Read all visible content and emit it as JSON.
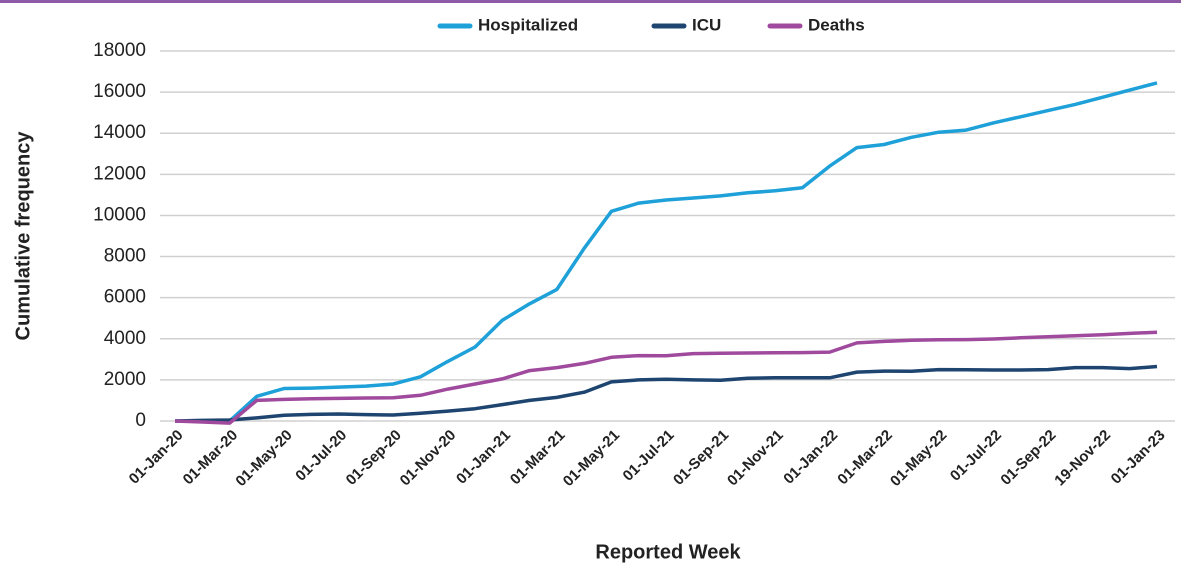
{
  "chart_data": {
    "type": "line",
    "x_label": "Reported Week",
    "y_label": "Cumulative frequency",
    "categories": [
      "01-Jan-20",
      null,
      "01-Mar-20",
      null,
      "01-May-20",
      null,
      "01-Jul-20",
      null,
      "01-Sep-20",
      null,
      "01-Nov-20",
      null,
      "01-Jan-21",
      null,
      "01-Mar-21",
      null,
      "01-May-21",
      null,
      "01-Jul-21",
      null,
      "01-Sep-21",
      null,
      "01-Nov-21",
      null,
      "01-Jan-22",
      null,
      "01-Mar-22",
      null,
      "01-May-22",
      null,
      "01-Jul-22",
      null,
      "01-Sep-22",
      null,
      "19-Nov-22",
      null,
      "01-Jan-23"
    ],
    "series": [
      {
        "name": "Hospitalized",
        "color": "#1ea0d8",
        "values": [
          0,
          0,
          0,
          1200,
          1580,
          1600,
          1650,
          1700,
          1800,
          2150,
          2900,
          3600,
          4900,
          5700,
          6400,
          8400,
          10200,
          10600,
          10750,
          10850,
          10950,
          11100,
          11200,
          11350,
          12400,
          13300,
          13450,
          13800,
          14050,
          14150,
          14500,
          14800,
          15100,
          15400,
          15750,
          16100,
          16450
        ]
      },
      {
        "name": "ICU",
        "color": "#1e4470",
        "values": [
          0,
          30,
          50,
          150,
          280,
          320,
          340,
          310,
          290,
          380,
          480,
          600,
          800,
          1000,
          1150,
          1400,
          1900,
          2000,
          2030,
          2000,
          1980,
          2080,
          2100,
          2100,
          2100,
          2380,
          2430,
          2420,
          2500,
          2490,
          2480,
          2480,
          2500,
          2600,
          2600,
          2550,
          2650
        ]
      },
      {
        "name": "Deaths",
        "color": "#a04a9e",
        "values": [
          0,
          -50,
          -100,
          1000,
          1050,
          1080,
          1100,
          1120,
          1130,
          1250,
          1550,
          1800,
          2050,
          2450,
          2600,
          2800,
          3100,
          3180,
          3170,
          3280,
          3300,
          3310,
          3320,
          3330,
          3350,
          3800,
          3870,
          3930,
          3950,
          3960,
          3990,
          4050,
          4100,
          4150,
          4200,
          4260,
          4320
        ]
      }
    ],
    "ylim": [
      0,
      18000
    ],
    "yticks": [
      0,
      2000,
      4000,
      6000,
      8000,
      10000,
      12000,
      14000,
      16000,
      18000
    ],
    "grid": true,
    "legend": "top"
  }
}
